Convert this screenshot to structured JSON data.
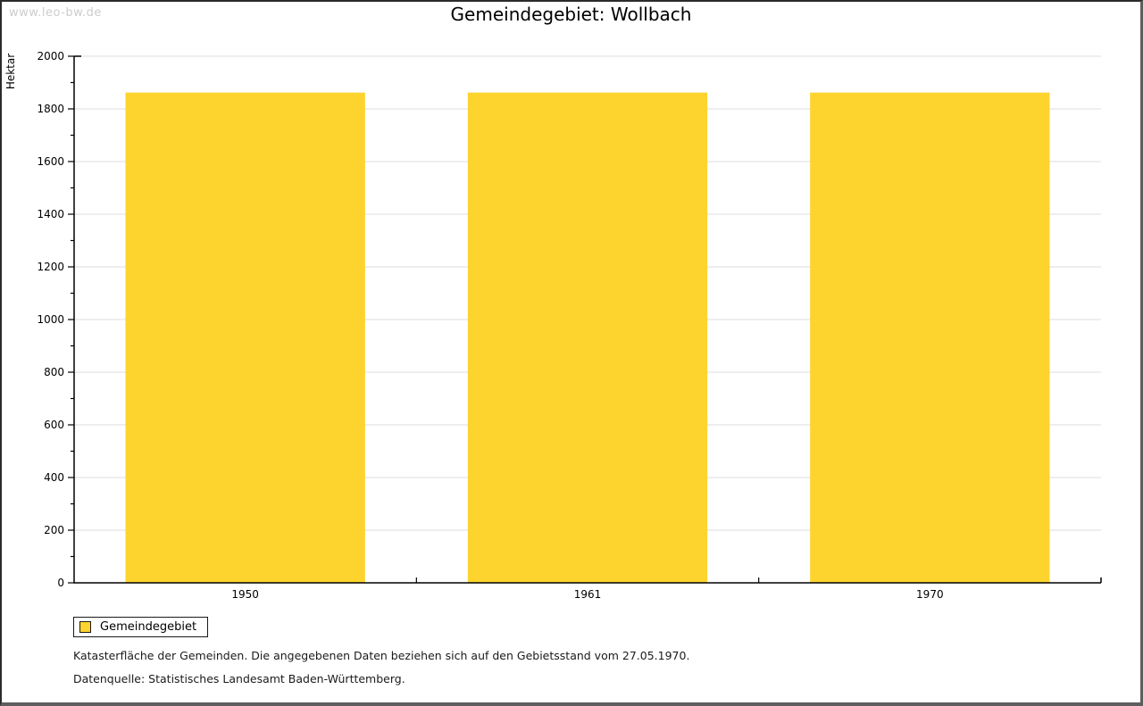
{
  "page": {
    "watermark": "www.leo-bw.de",
    "title": "Gemeindegebiet: Wollbach"
  },
  "chart_data": {
    "type": "bar",
    "title": "Gemeindegebiet: Wollbach",
    "categories": [
      "1950",
      "1961",
      "1970"
    ],
    "series": [
      {
        "name": "Gemeindegebiet",
        "values": [
          1862,
          1862,
          1862
        ]
      }
    ],
    "xlabel": "",
    "ylabel": "Hektar",
    "ylim": [
      0,
      2000
    ],
    "ytick_major": 200,
    "ytick_minor": 100,
    "grid": true,
    "legend_position": "bottom-left",
    "colors": {
      "bar": "#FCD42D",
      "grid": "#DDDDDD",
      "axis": "#000000",
      "text": "#000000",
      "watermark": "#CCCCCC"
    }
  },
  "legend": {
    "items": [
      {
        "label": "Gemeindegebiet",
        "color": "#FCD42D"
      }
    ]
  },
  "footnotes": {
    "line1": "Katasterfläche der Gemeinden. Die angegebenen Daten beziehen sich auf den Gebietsstand vom 27.05.1970.",
    "line2": "Datenquelle: Statistisches Landesamt Baden-Württemberg."
  }
}
